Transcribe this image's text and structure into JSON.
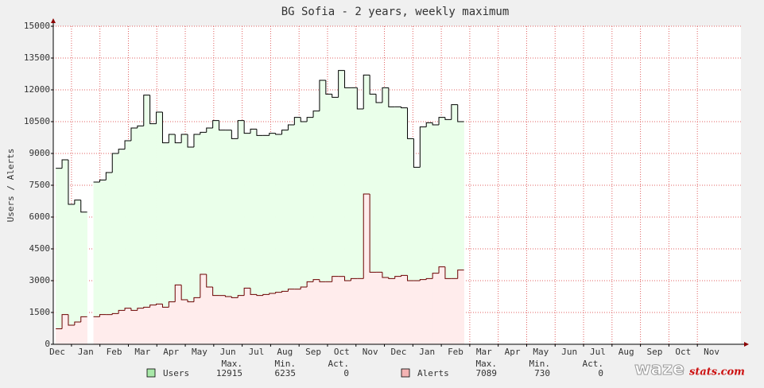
{
  "chart_data": {
    "type": "step-area",
    "title": "BG Sofia - 2 years, weekly maximum",
    "y_label": "Users / Alerts",
    "x": [
      0,
      1,
      2,
      3,
      4,
      5,
      6,
      7,
      8,
      9,
      10,
      11,
      12,
      13,
      14,
      15,
      16,
      17,
      18,
      19,
      20,
      21,
      22,
      23,
      24,
      25,
      26,
      27,
      28,
      29,
      30,
      31,
      32,
      33,
      34,
      35,
      36,
      37,
      38,
      39,
      40,
      41,
      42,
      43,
      44,
      45,
      46,
      47,
      48,
      49,
      50,
      51,
      52,
      53,
      54,
      55,
      56,
      57,
      58,
      59,
      60,
      61,
      62,
      63,
      64
    ],
    "series": [
      {
        "name": "Users",
        "color": "#000000",
        "fill": "#eaffea",
        "legend_color": "#a8e8a8",
        "values": [
          8300,
          8700,
          6600,
          6800,
          6235,
          null,
          7650,
          7750,
          8100,
          9000,
          9200,
          9600,
          10200,
          10300,
          11750,
          10400,
          10950,
          9500,
          9900,
          9500,
          9900,
          9300,
          9900,
          10000,
          10200,
          10550,
          10100,
          10100,
          9700,
          10550,
          9950,
          10150,
          9850,
          9850,
          9950,
          9900,
          10100,
          10350,
          10700,
          10500,
          10700,
          11000,
          12450,
          11800,
          11650,
          12915,
          12100,
          12100,
          11100,
          12700,
          11800,
          11400,
          12100,
          11200,
          11200,
          11150,
          9700,
          8350,
          10250,
          10450,
          10350,
          10700,
          10600,
          11300,
          10500
        ],
        "stats": [
          12915,
          6235,
          0
        ]
      },
      {
        "name": "Alerts",
        "color": "#6b0000",
        "fill": "#ffecec",
        "legend_color": "#f4b4b4",
        "values": [
          730,
          1400,
          900,
          1050,
          1300,
          null,
          1300,
          1400,
          1400,
          1450,
          1600,
          1700,
          1600,
          1700,
          1750,
          1850,
          1900,
          1750,
          2000,
          2800,
          2100,
          2000,
          2200,
          3300,
          2700,
          2300,
          2300,
          2250,
          2200,
          2300,
          2650,
          2350,
          2300,
          2350,
          2400,
          2450,
          2500,
          2600,
          2600,
          2700,
          2950,
          3050,
          2950,
          2950,
          3200,
          3200,
          3000,
          3100,
          3100,
          7089,
          3400,
          3400,
          3150,
          3100,
          3200,
          3250,
          3000,
          3000,
          3050,
          3100,
          3350,
          3650,
          3100,
          3100,
          3500
        ],
        "stats": [
          7089,
          730,
          0
        ]
      }
    ],
    "legend_headers": [
      "Max.",
      "Min.",
      "Act."
    ],
    "xlim": [
      -0.4,
      109.1
    ],
    "xticks": [
      {
        "value": -2.03,
        "label": "Dec"
      },
      {
        "value": 2.5,
        "label": "Jan"
      },
      {
        "value": 7.03,
        "label": "Feb"
      },
      {
        "value": 11.56,
        "label": "Mar"
      },
      {
        "value": 16.09,
        "label": "Apr"
      },
      {
        "value": 20.62,
        "label": "May"
      },
      {
        "value": 25.15,
        "label": "Jun"
      },
      {
        "value": 29.68,
        "label": "Jul"
      },
      {
        "value": 34.21,
        "label": "Aug"
      },
      {
        "value": 38.74,
        "label": "Sep"
      },
      {
        "value": 43.27,
        "label": "Oct"
      },
      {
        "value": 47.8,
        "label": "Nov"
      },
      {
        "value": 52.33,
        "label": "Dec"
      },
      {
        "value": 56.86,
        "label": "Jan"
      },
      {
        "value": 61.39,
        "label": "Feb"
      },
      {
        "value": 65.92,
        "label": "Mar"
      },
      {
        "value": 70.45,
        "label": "Apr"
      },
      {
        "value": 74.98,
        "label": "May"
      },
      {
        "value": 79.51,
        "label": "Jun"
      },
      {
        "value": 84.04,
        "label": "Jul"
      },
      {
        "value": 88.57,
        "label": "Aug"
      },
      {
        "value": 93.1,
        "label": "Sep"
      },
      {
        "value": 97.63,
        "label": "Oct"
      },
      {
        "value": 102.16,
        "label": "Nov"
      }
    ],
    "ylim": [
      0,
      15000
    ],
    "yticks": [
      0,
      1500,
      3000,
      4500,
      6000,
      7500,
      9000,
      10500,
      12000,
      13500,
      15000
    ],
    "grid": true,
    "grid_color": "#e06060",
    "logo": [
      "waze",
      "stats.com"
    ]
  }
}
